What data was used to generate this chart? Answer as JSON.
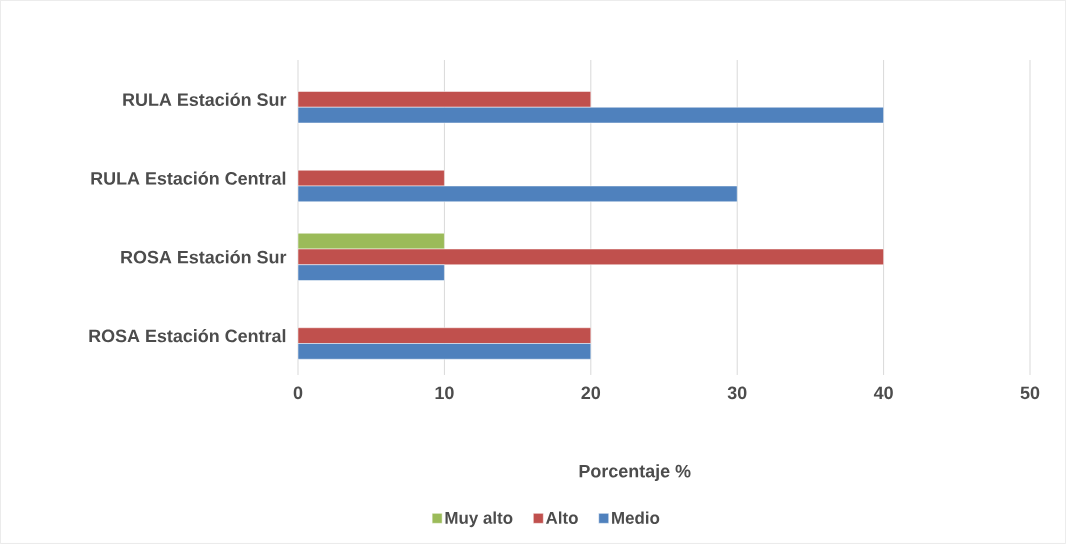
{
  "chart_data": {
    "type": "bar",
    "orientation": "horizontal",
    "categories": [
      "RULA Estación Sur",
      "RULA Estación Central",
      "ROSA Estación Sur",
      "ROSA Estación Central"
    ],
    "series": [
      {
        "name": "Muy alto",
        "color": "#9bbb59",
        "values": [
          null,
          null,
          10,
          null
        ]
      },
      {
        "name": "Alto",
        "color": "#c0504d",
        "values": [
          20,
          10,
          40,
          20
        ]
      },
      {
        "name": "Medio",
        "color": "#4f81bd",
        "values": [
          40,
          30,
          10,
          20
        ]
      }
    ],
    "xlabel": "Porcentaje %",
    "xlim": [
      0,
      50
    ],
    "xticks": [
      0,
      10,
      20,
      30,
      40,
      50
    ],
    "grid": "x",
    "legend": "bottom"
  }
}
